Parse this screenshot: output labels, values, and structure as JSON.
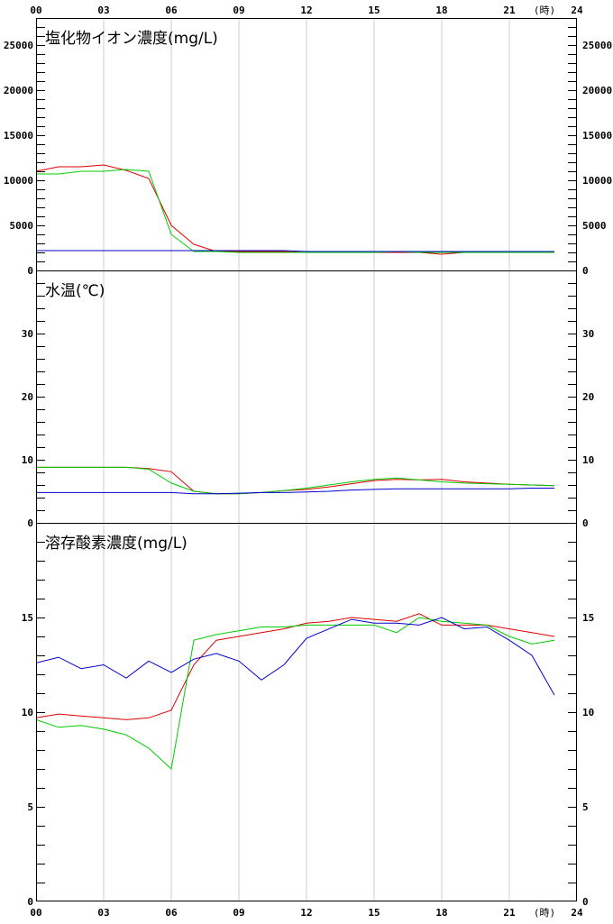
{
  "x_axis": {
    "tick_labels": [
      "00",
      "03",
      "06",
      "09",
      "12",
      "15",
      "18",
      "21",
      "24"
    ],
    "unit_label": "(時)"
  },
  "colors": {
    "red": "#dd0000",
    "green": "#00cc00",
    "blue": "#0000cc",
    "grid": "#cccccc",
    "axis": "#000000"
  },
  "chart_data": [
    {
      "type": "line",
      "title": "塩化物イオン濃度(mg/L)",
      "x": [
        0,
        1,
        2,
        3,
        4,
        5,
        6,
        7,
        8,
        9,
        10,
        11,
        12,
        13,
        14,
        15,
        16,
        17,
        18,
        19,
        20,
        21,
        22,
        23
      ],
      "xlim": [
        0,
        24
      ],
      "ylim": [
        0,
        28000
      ],
      "yticks": [
        0,
        5000,
        10000,
        15000,
        20000,
        25000
      ],
      "series": [
        {
          "color": "#dd0000",
          "values": [
            11000,
            11500,
            11500,
            11700,
            11100,
            10200,
            5000,
            2900,
            2100,
            2100,
            2100,
            2100,
            2000,
            2000,
            2000,
            2000,
            2000,
            2000,
            1800,
            2000,
            2000,
            2000,
            2000,
            2100
          ]
        },
        {
          "color": "#00cc00",
          "values": [
            10700,
            10700,
            11000,
            11000,
            11200,
            11000,
            4000,
            2100,
            2100,
            2000,
            2000,
            2000,
            2000,
            2000,
            2000,
            2000,
            2100,
            2000,
            2000,
            2000,
            2000,
            2000,
            2000,
            2000
          ]
        },
        {
          "color": "#0000cc",
          "values": [
            2200,
            2200,
            2200,
            2200,
            2200,
            2200,
            2200,
            2200,
            2200,
            2200,
            2200,
            2200,
            2100,
            2100,
            2100,
            2100,
            2100,
            2100,
            2100,
            2100,
            2100,
            2100,
            2100,
            2100
          ]
        }
      ]
    },
    {
      "type": "line",
      "title": "水温(℃)",
      "x": [
        0,
        1,
        2,
        3,
        4,
        5,
        6,
        7,
        8,
        9,
        10,
        11,
        12,
        13,
        14,
        15,
        16,
        17,
        18,
        19,
        20,
        21,
        22,
        23
      ],
      "xlim": [
        0,
        24
      ],
      "ylim": [
        0,
        40
      ],
      "yticks": [
        0,
        10,
        20,
        30
      ],
      "series": [
        {
          "color": "#dd0000",
          "values": [
            8.8,
            8.8,
            8.8,
            8.8,
            8.8,
            8.6,
            8.1,
            5.0,
            4.6,
            4.6,
            4.8,
            5.1,
            5.3,
            5.7,
            6.2,
            6.7,
            6.9,
            6.8,
            6.9,
            6.5,
            6.3,
            6.1,
            6.0,
            5.9
          ]
        },
        {
          "color": "#00cc00",
          "values": [
            8.8,
            8.8,
            8.8,
            8.8,
            8.8,
            8.5,
            6.3,
            5.0,
            4.6,
            4.6,
            4.8,
            5.1,
            5.5,
            6.0,
            6.5,
            6.9,
            7.1,
            6.8,
            6.5,
            6.3,
            6.2,
            6.1,
            6.0,
            5.9
          ]
        },
        {
          "color": "#0000cc",
          "values": [
            4.8,
            4.8,
            4.8,
            4.8,
            4.8,
            4.8,
            4.8,
            4.6,
            4.6,
            4.7,
            4.8,
            4.8,
            4.9,
            5.0,
            5.2,
            5.3,
            5.4,
            5.4,
            5.4,
            5.4,
            5.4,
            5.4,
            5.5,
            5.5
          ]
        }
      ]
    },
    {
      "type": "line",
      "title": "溶存酸素濃度(mg/L)",
      "x": [
        0,
        1,
        2,
        3,
        4,
        5,
        6,
        7,
        8,
        9,
        10,
        11,
        12,
        13,
        14,
        15,
        16,
        17,
        18,
        19,
        20,
        21,
        22,
        23
      ],
      "xlim": [
        0,
        24
      ],
      "ylim": [
        0,
        20
      ],
      "yticks": [
        0,
        5,
        10,
        15
      ],
      "series": [
        {
          "color": "#dd0000",
          "values": [
            9.7,
            9.9,
            9.8,
            9.7,
            9.6,
            9.7,
            10.1,
            12.5,
            13.8,
            14.0,
            14.2,
            14.4,
            14.7,
            14.8,
            15.0,
            14.9,
            14.8,
            15.2,
            14.6,
            14.6,
            14.6,
            14.4,
            14.2,
            14.0
          ]
        },
        {
          "color": "#00cc00",
          "values": [
            9.6,
            9.2,
            9.3,
            9.1,
            8.8,
            8.1,
            7.0,
            13.8,
            14.1,
            14.3,
            14.5,
            14.5,
            14.6,
            14.6,
            14.6,
            14.6,
            14.2,
            15.0,
            14.8,
            14.7,
            14.6,
            14.0,
            13.6,
            13.8
          ]
        },
        {
          "color": "#0000cc",
          "values": [
            12.6,
            12.9,
            12.3,
            12.5,
            11.8,
            12.7,
            12.1,
            12.8,
            13.1,
            12.7,
            11.7,
            12.5,
            13.9,
            14.4,
            14.9,
            14.7,
            14.7,
            14.6,
            15.0,
            14.4,
            14.5,
            13.8,
            13.0,
            10.9
          ]
        }
      ]
    }
  ]
}
